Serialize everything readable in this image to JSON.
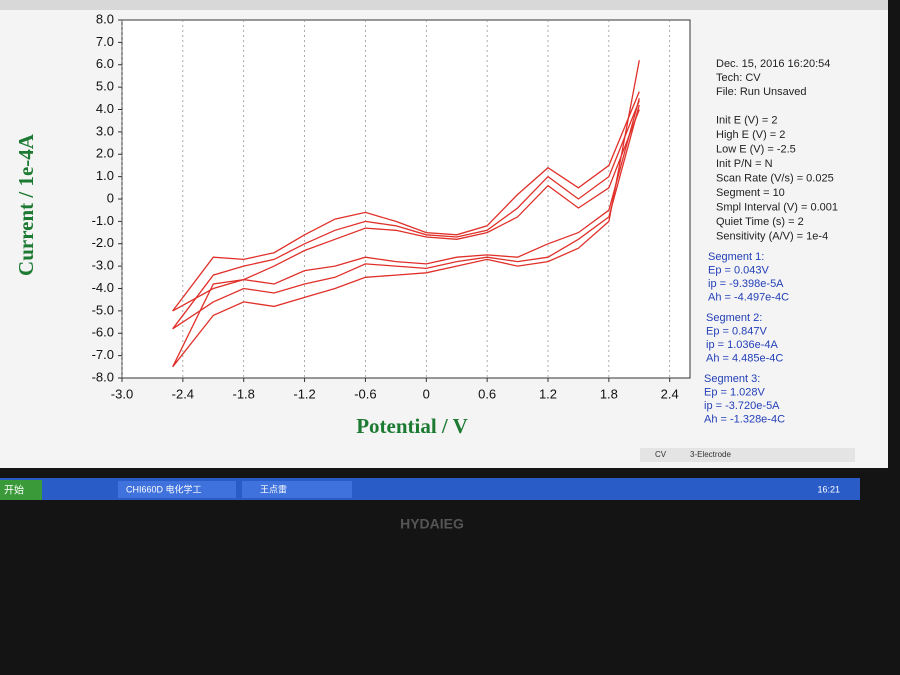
{
  "chart_data": {
    "type": "line",
    "x_label": "Potential / V",
    "y_label": "Current / 1e-4A",
    "x": [
      2.1,
      1.8,
      1.5,
      1.2,
      0.9,
      0.6,
      0.3,
      0,
      -0.3,
      -0.6,
      -0.9,
      -1.2,
      -1.5,
      -1.8,
      -2.1,
      -2.5,
      -2.1,
      -1.8,
      -1.5,
      -1.2,
      -0.9,
      -0.6,
      -0.3,
      0,
      0.3,
      0.6,
      0.9,
      1.2,
      1.5,
      1.8,
      2.1
    ],
    "series": [
      {
        "color": "#e0302a",
        "values": [
          4.5,
          -0.5,
          -1.5,
          -2.0,
          -2.6,
          -2.5,
          -2.6,
          -2.9,
          -2.8,
          -2.6,
          -3.0,
          -3.2,
          -3.8,
          -3.6,
          -4.0,
          -5.0,
          -2.6,
          -2.7,
          -2.4,
          -1.6,
          -0.9,
          -0.6,
          -1.0,
          -1.5,
          -1.6,
          -1.2,
          0.2,
          1.4,
          0.5,
          1.5,
          4.8
        ]
      },
      {
        "color": "#e0302a",
        "values": [
          4.2,
          -0.8,
          -1.8,
          -2.6,
          -2.8,
          -2.6,
          -2.8,
          -3.1,
          -3.0,
          -2.9,
          -3.5,
          -3.8,
          -4.2,
          -4.0,
          -4.6,
          -5.8,
          -3.4,
          -3.0,
          -2.7,
          -2.0,
          -1.4,
          -1.0,
          -1.2,
          -1.6,
          -1.7,
          -1.4,
          -0.4,
          1.0,
          0.0,
          1.0,
          4.4
        ]
      },
      {
        "color": "#e0302a",
        "values": [
          6.2,
          -1.0,
          -2.2,
          -2.8,
          -3.0,
          -2.7,
          -3.0,
          -3.3,
          -3.4,
          -3.5,
          -4.0,
          -4.4,
          -4.8,
          -4.6,
          -5.2,
          -7.5,
          -3.8,
          -3.6,
          -3.0,
          -2.3,
          -1.8,
          -1.3,
          -1.4,
          -1.7,
          -1.8,
          -1.5,
          -0.8,
          0.6,
          -0.4,
          0.5,
          4.0
        ]
      }
    ],
    "xlim": [
      -3.0,
      2.6
    ],
    "xticks": [
      {
        "value": -3,
        "label": "-3.0"
      },
      -2.4,
      -1.8,
      -1.2,
      -0.6,
      0,
      0.6,
      1.2,
      1.8,
      2.4
    ],
    "ylim": [
      -8,
      8
    ],
    "yticks": [
      {
        "value": 8,
        "label": "8.0"
      },
      {
        "value": 7,
        "label": "7.0"
      },
      {
        "value": 6,
        "label": "6.0"
      },
      {
        "value": 5,
        "label": "5.0"
      },
      {
        "value": 4,
        "label": "4.0"
      },
      {
        "value": 3,
        "label": "3.0"
      },
      {
        "value": 2,
        "label": "2.0"
      },
      {
        "value": 1,
        "label": "1.0"
      },
      0,
      {
        "value": -1,
        "label": "-1.0"
      },
      {
        "value": -2,
        "label": "-2.0"
      },
      {
        "value": -3,
        "label": "-3.0"
      },
      {
        "value": -4,
        "label": "-4.0"
      },
      {
        "value": -5,
        "label": "-5.0"
      },
      {
        "value": -6,
        "label": "-6.0"
      },
      {
        "value": -7,
        "label": "-7.0"
      },
      {
        "value": -8,
        "label": "-8.0"
      }
    ],
    "grid": true
  },
  "info": {
    "lines": [
      "Dec. 15, 2016    16:20:54",
      "Tech: CV",
      "File: Run Unsaved",
      "",
      "Init E (V) = 2",
      "High E (V) = 2",
      "Low E (V) = -2.5",
      "Init P/N = N",
      "Scan Rate (V/s) = 0.025",
      "Segment = 10",
      "Smpl Interval (V) = 0.001",
      "Quiet Time (s) = 2",
      "Sensitivity (A/V) = 1e-4"
    ],
    "segments": [
      {
        "title": "Segment 1:",
        "ep": "Ep = 0.043V",
        "ip": "ip = -9.398e-5A",
        "ah": "Ah = -4.497e-4C"
      },
      {
        "title": "Segment 2:",
        "ep": "Ep = 0.847V",
        "ip": "ip = 1.036e-4A",
        "ah": "Ah = 4.485e-4C"
      },
      {
        "title": "Segment 3:",
        "ep": "Ep = 1.028V",
        "ip": "ip = -3.720e-5A",
        "ah": "Ah = -1.328e-4C"
      }
    ]
  },
  "status": {
    "mode": "CV",
    "electrode": "3-Electrode"
  },
  "taskbar": {
    "start": "开始",
    "items": [
      "CHI660D 电化学工",
      "王点雷"
    ],
    "clock": "16:21"
  },
  "monitor_brand": "HYDAIEG"
}
